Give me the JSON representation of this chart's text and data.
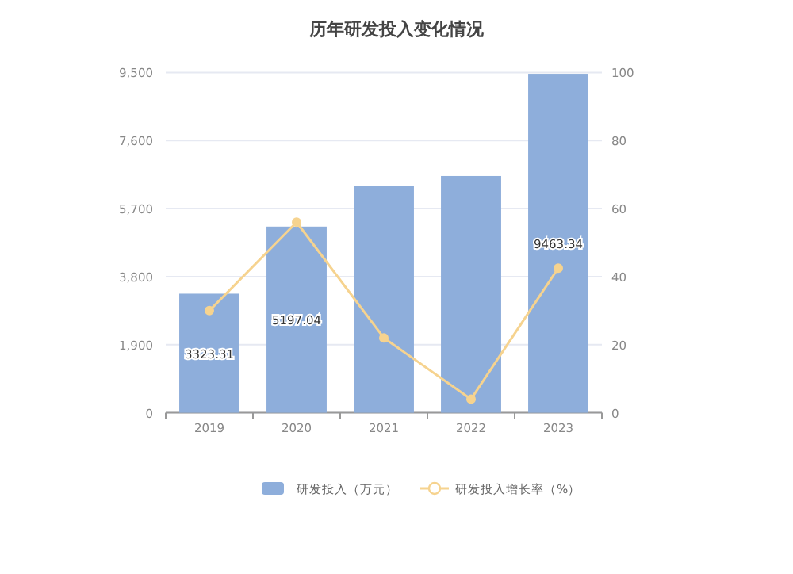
{
  "chart_data": {
    "type": "bar",
    "title": "历年研发投入变化情况",
    "categories": [
      "2019",
      "2020",
      "2021",
      "2022",
      "2023"
    ],
    "series": [
      {
        "name": "研发投入（万元）",
        "color": "#8eaedb",
        "values": [
          3323.31,
          5197.04,
          6330,
          6610,
          9463.34
        ],
        "value_labels": [
          "3323.31",
          "5197.04",
          null,
          null,
          "9463.34"
        ]
      },
      {
        "name": "研发投入增长率（%）",
        "type": "line",
        "axis": "y2",
        "color": "#f6d38f",
        "values": [
          30,
          56,
          22,
          4,
          42.5
        ]
      }
    ],
    "marker": "circle",
    "ylim": [
      0,
      9500
    ],
    "yticks": [
      0,
      {
        "value": 1900,
        "label": "1,900"
      },
      {
        "value": 3800,
        "label": "3,800"
      },
      {
        "value": 5700,
        "label": "5,700"
      },
      {
        "value": 7600,
        "label": "7,600"
      },
      {
        "value": 9500,
        "label": "9,500"
      }
    ],
    "y2lim": [
      0,
      100
    ],
    "y2ticks": [
      0,
      20,
      40,
      60,
      80,
      100
    ],
    "grid": "y",
    "legend": "bottom"
  }
}
